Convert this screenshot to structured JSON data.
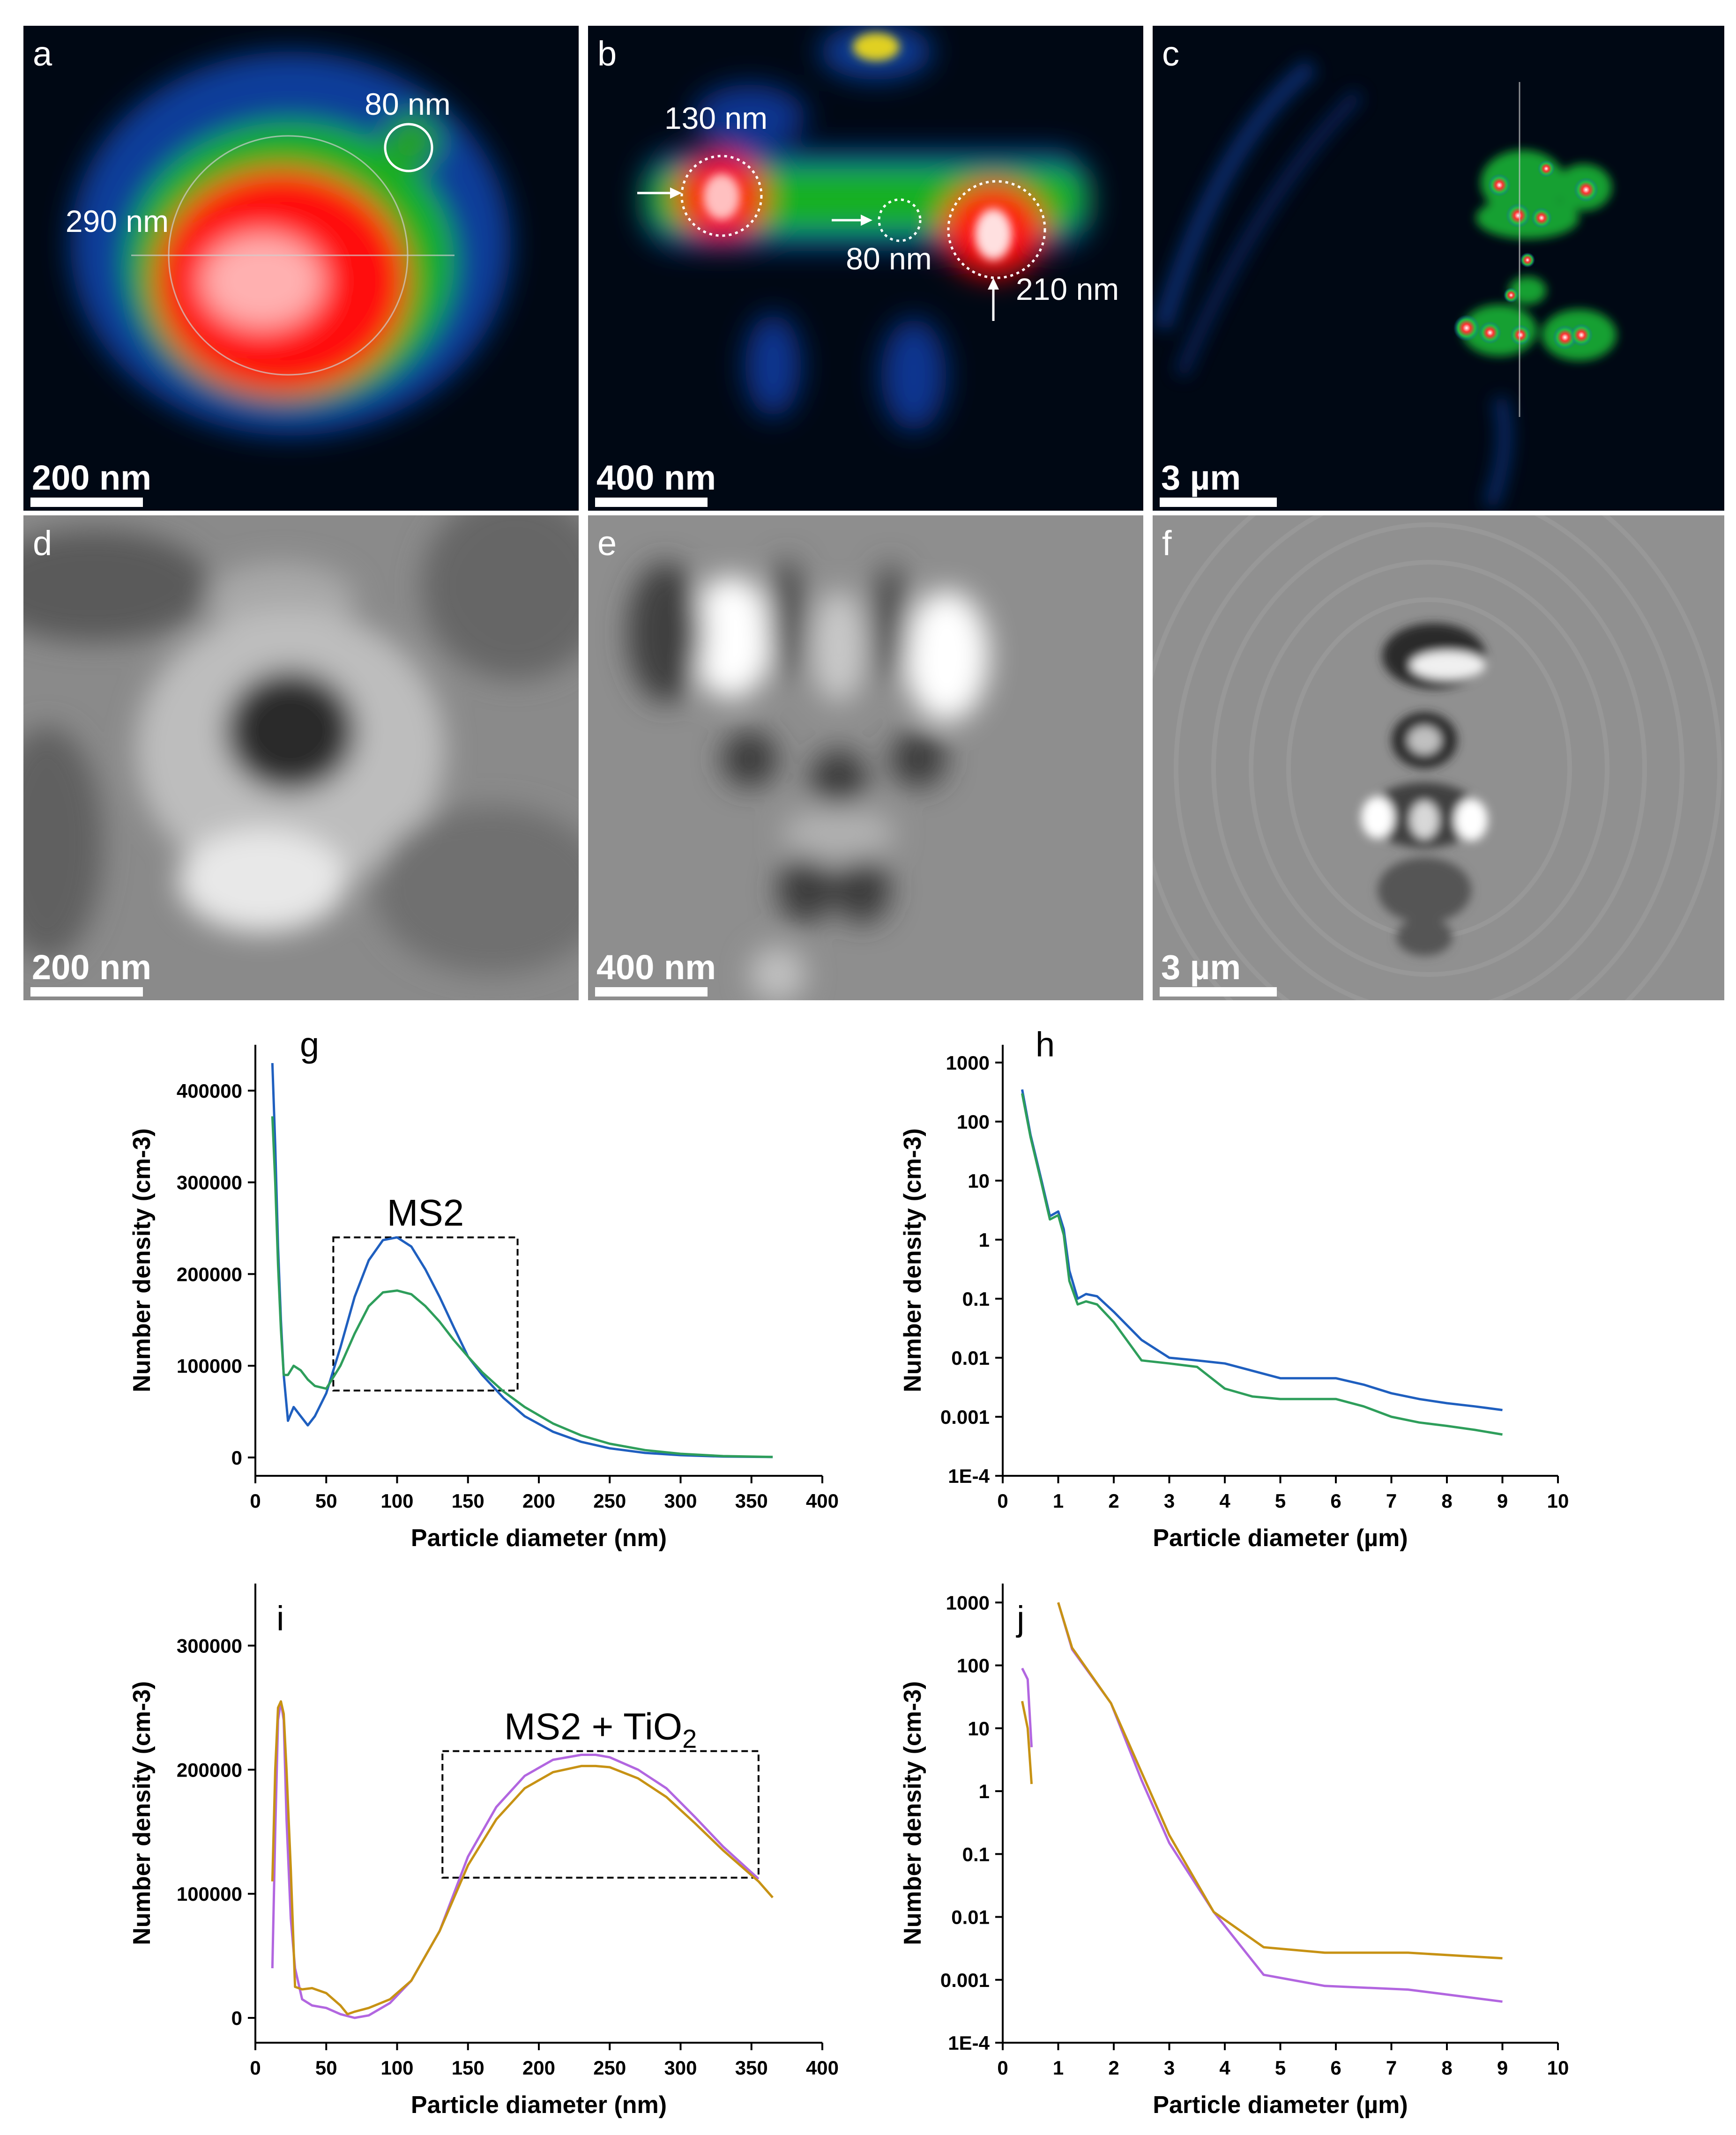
{
  "figure": {
    "panels": [
      {
        "id": "a",
        "label": "a",
        "scale_bar": "200 nm",
        "annotations": [
          "80 nm",
          "290 nm"
        ]
      },
      {
        "id": "b",
        "label": "b",
        "scale_bar": "400 nm",
        "annotations": [
          "130 nm",
          "80 nm",
          "210 nm"
        ]
      },
      {
        "id": "c",
        "label": "c",
        "scale_bar": "3 µm",
        "annotations": []
      },
      {
        "id": "d",
        "label": "d",
        "scale_bar": "200 nm",
        "annotations": []
      },
      {
        "id": "e",
        "label": "e",
        "scale_bar": "400 nm",
        "annotations": []
      },
      {
        "id": "f",
        "label": "f",
        "scale_bar": "3 µm",
        "annotations": []
      }
    ],
    "colors": {
      "blue_series": "#1f5fbf",
      "green_series": "#2e9e5b",
      "purple_series": "#b266e0",
      "gold_series": "#c79214"
    }
  },
  "chart_data": [
    {
      "id": "g",
      "type": "line",
      "panel_label": "g",
      "xlabel": "Particle diameter (nm)",
      "ylabel": "Number density (cm-3)",
      "xlim": [
        0,
        400
      ],
      "ylim": [
        -20000,
        450000
      ],
      "xticks": [
        0,
        50,
        100,
        150,
        200,
        250,
        300,
        350,
        400
      ],
      "xtick_labels": [
        "0",
        "50",
        "100",
        "150",
        "200",
        "250",
        "300",
        "350",
        "400"
      ],
      "yticks": [
        0,
        100000,
        200000,
        300000,
        400000
      ],
      "ytick_labels": [
        "0",
        "100000",
        "200000",
        "300000",
        "400000"
      ],
      "yscale": "linear",
      "box_label": "MS2",
      "box_range": {
        "x": [
          55,
          185
        ],
        "y": [
          73000,
          240000
        ]
      },
      "series": [
        {
          "color": "#1f5fbf",
          "x": [
            12,
            14,
            16,
            18,
            20,
            23,
            27,
            32,
            37,
            42,
            50,
            60,
            70,
            80,
            90,
            100,
            110,
            120,
            130,
            140,
            150,
            160,
            175,
            190,
            210,
            230,
            250,
            275,
            300,
            330,
            365
          ],
          "y": [
            430000,
            340000,
            230000,
            150000,
            90000,
            40000,
            55000,
            45000,
            35000,
            45000,
            70000,
            120000,
            175000,
            215000,
            237000,
            240000,
            230000,
            205000,
            175000,
            142000,
            110000,
            90000,
            65000,
            45000,
            28000,
            17000,
            10000,
            5000,
            2500,
            1000,
            500
          ]
        },
        {
          "color": "#2e9e5b",
          "x": [
            12,
            14,
            16,
            18,
            20,
            23,
            27,
            32,
            37,
            42,
            50,
            60,
            70,
            80,
            90,
            100,
            110,
            120,
            130,
            140,
            150,
            160,
            175,
            190,
            210,
            230,
            250,
            275,
            300,
            330,
            365
          ],
          "y": [
            372000,
            300000,
            210000,
            140000,
            90000,
            90000,
            100000,
            95000,
            85000,
            78000,
            75000,
            100000,
            135000,
            165000,
            180000,
            182000,
            178000,
            165000,
            148000,
            128000,
            110000,
            93000,
            72000,
            55000,
            37000,
            24000,
            15000,
            8000,
            4000,
            1500,
            600
          ]
        }
      ]
    },
    {
      "id": "h",
      "type": "line",
      "panel_label": "h",
      "xlabel": "Particle diameter (µm)",
      "ylabel": "Number density (cm-3)",
      "xlim": [
        0,
        10
      ],
      "ylim": [
        0.0001,
        2000
      ],
      "xticks": [
        0,
        1,
        2,
        3,
        4,
        5,
        6,
        7,
        8,
        9,
        10
      ],
      "xtick_labels": [
        "0",
        "1",
        "2",
        "3",
        "4",
        "5",
        "6",
        "7",
        "8",
        "9",
        "10"
      ],
      "yticks": [
        0.0001,
        0.001,
        0.01,
        0.1,
        1,
        10,
        100,
        1000
      ],
      "ytick_labels": [
        "1E-4",
        "0.001",
        "0.01",
        "0.1",
        "1",
        "10",
        "100",
        "1000"
      ],
      "yscale": "log",
      "series": [
        {
          "color": "#1f5fbf",
          "x": [
            0.35,
            0.5,
            0.7,
            0.85,
            1.0,
            1.1,
            1.2,
            1.35,
            1.5,
            1.7,
            2.0,
            2.5,
            3.0,
            3.5,
            4.0,
            4.5,
            5.0,
            5.5,
            6.0,
            6.5,
            7.0,
            7.5,
            8.0,
            8.5,
            9.0
          ],
          "y": [
            350,
            60,
            10,
            2.5,
            3.0,
            1.5,
            0.3,
            0.1,
            0.12,
            0.11,
            0.06,
            0.02,
            0.01,
            0.009,
            0.008,
            0.006,
            0.0045,
            0.0045,
            0.0045,
            0.0035,
            0.0025,
            0.002,
            0.0017,
            0.0015,
            0.0013
          ]
        },
        {
          "color": "#2e9e5b",
          "x": [
            0.35,
            0.5,
            0.7,
            0.85,
            1.0,
            1.1,
            1.2,
            1.35,
            1.5,
            1.7,
            2.0,
            2.5,
            3.0,
            3.5,
            4.0,
            4.5,
            5.0,
            5.5,
            6.0,
            6.5,
            7.0,
            7.5,
            8.0,
            8.5,
            9.0
          ],
          "y": [
            300,
            55,
            9,
            2.2,
            2.6,
            1.2,
            0.2,
            0.08,
            0.09,
            0.08,
            0.04,
            0.009,
            0.008,
            0.007,
            0.003,
            0.0022,
            0.002,
            0.002,
            0.002,
            0.0015,
            0.001,
            0.0008,
            0.0007,
            0.0006,
            0.0005
          ]
        }
      ]
    },
    {
      "id": "i",
      "type": "line",
      "panel_label": "i",
      "xlabel": "Particle diameter (nm)",
      "ylabel": "Number density (cm-3)",
      "xlim": [
        0,
        400
      ],
      "ylim": [
        -20000,
        350000
      ],
      "xticks": [
        0,
        50,
        100,
        150,
        200,
        250,
        300,
        350,
        400
      ],
      "xtick_labels": [
        "0",
        "50",
        "100",
        "150",
        "200",
        "250",
        "300",
        "350",
        "400"
      ],
      "yticks": [
        0,
        100000,
        200000,
        300000
      ],
      "ytick_labels": [
        "0",
        "100000",
        "200000",
        "300000"
      ],
      "yscale": "linear",
      "box_label": "MS2 + TiO",
      "box_label_sub": "2",
      "box_range": {
        "x": [
          132,
          355
        ],
        "y": [
          113000,
          215000
        ]
      },
      "series": [
        {
          "color": "#b266e0",
          "x": [
            12,
            14,
            16,
            18,
            20,
            22,
            25,
            28,
            33,
            40,
            50,
            60,
            70,
            80,
            95,
            110,
            130,
            150,
            170,
            190,
            210,
            230,
            240,
            250,
            270,
            290,
            310,
            330,
            355
          ],
          "y": [
            40000,
            150000,
            240000,
            255000,
            240000,
            160000,
            80000,
            40000,
            15000,
            10000,
            8000,
            3000,
            0,
            2000,
            12000,
            30000,
            70000,
            130000,
            170000,
            195000,
            208000,
            212000,
            212000,
            210000,
            200000,
            185000,
            162000,
            138000,
            112000
          ]
        },
        {
          "color": "#c79214",
          "x": [
            12,
            14,
            16,
            18,
            20,
            22,
            25,
            28,
            33,
            40,
            50,
            60,
            65,
            70,
            80,
            95,
            110,
            130,
            150,
            170,
            190,
            210,
            230,
            240,
            250,
            270,
            290,
            310,
            330,
            355,
            365
          ],
          "y": [
            110000,
            200000,
            250000,
            255000,
            245000,
            200000,
            120000,
            25000,
            23000,
            24000,
            20000,
            10000,
            3000,
            5000,
            8000,
            15000,
            30000,
            70000,
            123000,
            160000,
            185000,
            198000,
            203000,
            203000,
            202000,
            193000,
            178000,
            157000,
            135000,
            110000,
            97000
          ]
        }
      ]
    },
    {
      "id": "j",
      "type": "line",
      "panel_label": "j",
      "xlabel": "Particle diameter (µm)",
      "ylabel": "Number density (cm-3)",
      "xlim": [
        0,
        10
      ],
      "ylim": [
        0.0001,
        2000
      ],
      "xticks": [
        0,
        1,
        2,
        3,
        4,
        5,
        6,
        7,
        8,
        9,
        10
      ],
      "xtick_labels": [
        "0",
        "1",
        "2",
        "3",
        "4",
        "5",
        "6",
        "7",
        "8",
        "9",
        "10"
      ],
      "yticks": [
        0.0001,
        0.001,
        0.01,
        0.1,
        1,
        10,
        100,
        1000
      ],
      "ytick_labels": [
        "1E-4",
        "0.001",
        "0.01",
        "0.1",
        "1",
        "10",
        "100",
        "1000"
      ],
      "yscale": "log",
      "series": [
        {
          "color": "#b266e0",
          "segments": [
            {
              "x": [
                0.35,
                0.45,
                0.52
              ],
              "y": [
                90,
                60,
                5
              ]
            },
            {
              "x": [
                1.0,
                1.25,
                1.95,
                2.5,
                3.0,
                3.8,
                4.7,
                5.8,
                7.3,
                9.0
              ],
              "y": [
                1000,
                180,
                25,
                1.5,
                0.15,
                0.012,
                0.0012,
                0.0008,
                0.0007,
                0.00045
              ]
            }
          ]
        },
        {
          "color": "#c79214",
          "segments": [
            {
              "x": [
                0.35,
                0.45,
                0.52
              ],
              "y": [
                27,
                10,
                1.3
              ]
            },
            {
              "x": [
                1.0,
                1.25,
                1.95,
                2.5,
                3.0,
                3.8,
                4.7,
                5.8,
                7.3,
                9.0
              ],
              "y": [
                1000,
                190,
                25,
                2.0,
                0.2,
                0.012,
                0.0033,
                0.0027,
                0.0027,
                0.0022
              ]
            }
          ]
        }
      ]
    }
  ]
}
